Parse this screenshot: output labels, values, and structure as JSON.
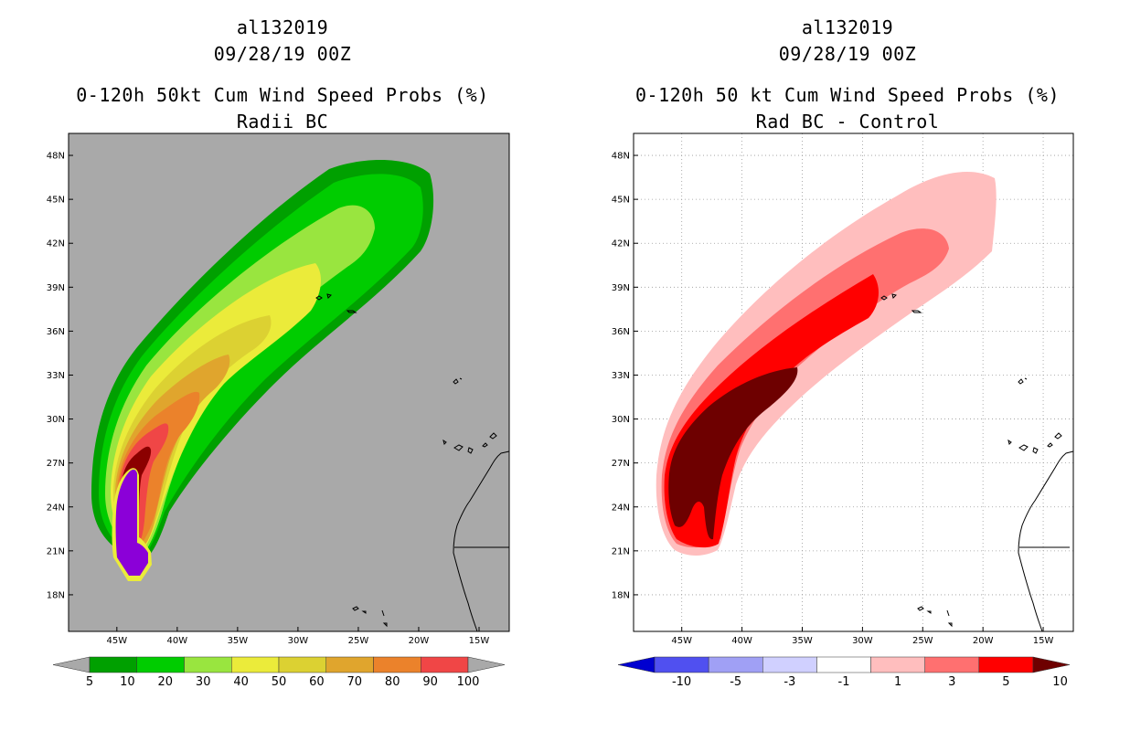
{
  "left_panel": {
    "title_storm": "al132019",
    "title_time": "09/28/19 00Z",
    "title_product": "0-120h 50kt Cum Wind Speed Probs (%)",
    "title_sub": "Radii BC",
    "background_color": "#a9a9a9",
    "colorbar": {
      "labels": [
        "5",
        "10",
        "20",
        "30",
        "40",
        "50",
        "60",
        "70",
        "80",
        "90",
        "100"
      ],
      "colors": [
        "#00a000",
        "#00cc00",
        "#99e53f",
        "#ebeb3a",
        "#dcd132",
        "#e0a52d",
        "#eb822b",
        "#f04646",
        "#8b0000",
        "#8b00d8"
      ]
    }
  },
  "right_panel": {
    "title_storm": "al132019",
    "title_time": "09/28/19 00Z",
    "title_product": "0-120h 50 kt Cum Wind Speed Probs (%)",
    "title_sub": "Rad BC - Control",
    "background_color": "#ffffff",
    "colorbar": {
      "labels": [
        "-10",
        "-5",
        "-3",
        "-1",
        "1",
        "3",
        "5",
        "10"
      ],
      "colors": [
        "#0000d0",
        "#5050f0",
        "#a0a0f5",
        "#d0d0ff",
        "#ffffff",
        "#ffbebe",
        "#ff7070",
        "#ff0000",
        "#6e0000"
      ]
    }
  },
  "map_axes": {
    "lat_labels": [
      "18N",
      "21N",
      "24N",
      "27N",
      "30N",
      "33N",
      "36N",
      "39N",
      "42N",
      "45N",
      "48N"
    ],
    "lon_labels": [
      "45W",
      "40W",
      "35W",
      "30W",
      "25W",
      "20W",
      "15W"
    ],
    "lat_values": [
      18,
      21,
      24,
      27,
      30,
      33,
      36,
      39,
      42,
      45,
      48
    ],
    "lon_values": [
      -45,
      -40,
      -35,
      -30,
      -25,
      -20,
      -15
    ],
    "lat_range": [
      15.5,
      49.5
    ],
    "lon_range": [
      -49,
      -12.5
    ]
  }
}
